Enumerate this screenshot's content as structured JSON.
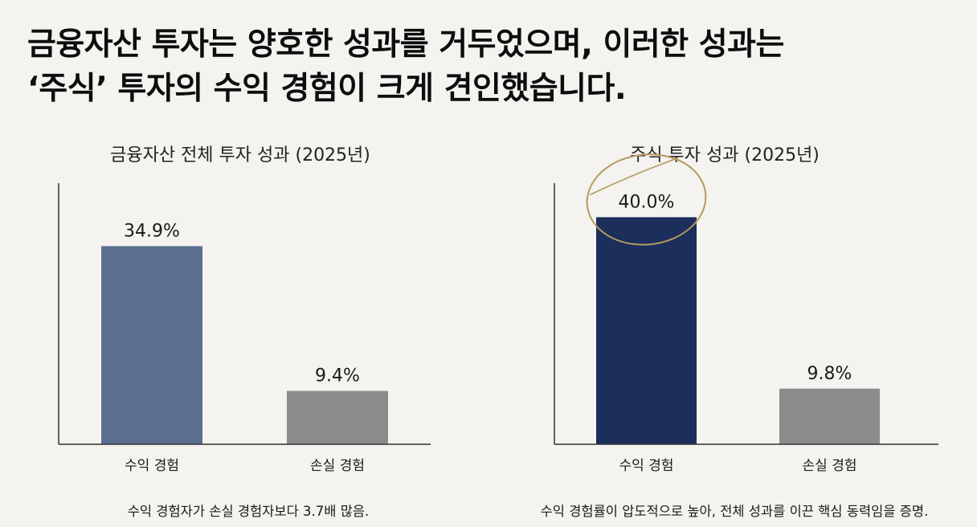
{
  "headline": {
    "line1": "금융자산 투자는 양호한 성과를 거두었으며, 이러한 성과는",
    "line2": "‘주식’ 투자의 수익 경험이 크게 견인했습니다."
  },
  "colors": {
    "background": "#f4f3ef",
    "total_profit": "#5a6f91",
    "stock_profit": "#1b2e5c",
    "loss": "#8c8c8c",
    "highlight_circle": "#b49a5e",
    "axis": "#333333"
  },
  "chart_data": [
    {
      "type": "bar",
      "title": "금융자산 전체 투자 성과 (2025년)",
      "categories": [
        "수익 경험",
        "손실 경험"
      ],
      "values": [
        34.9,
        9.4
      ],
      "value_labels": [
        "34.9%",
        "9.4%"
      ],
      "unit": "%",
      "ylim": [
        0,
        46
      ],
      "grid": false,
      "legend": "none",
      "bar_colors": [
        "#5a6f91",
        "#8c8c8c"
      ],
      "note": "수익 경험자가 손실 경험자보다 3.7배 많음."
    },
    {
      "type": "bar",
      "title": "주식 투자 성과 (2025년)",
      "categories": [
        "수익 경험",
        "손실 경험"
      ],
      "values": [
        40.0,
        9.8
      ],
      "value_labels": [
        "40.0%",
        "9.8%"
      ],
      "unit": "%",
      "ylim": [
        0,
        46
      ],
      "grid": false,
      "legend": "none",
      "bar_colors": [
        "#1b2e5c",
        "#8c8c8c"
      ],
      "highlighted_category": "수익 경험",
      "note": "수익 경험률이 압도적으로 높아, 전체 성과를 이끈 핵심 동력임을 증명."
    }
  ]
}
